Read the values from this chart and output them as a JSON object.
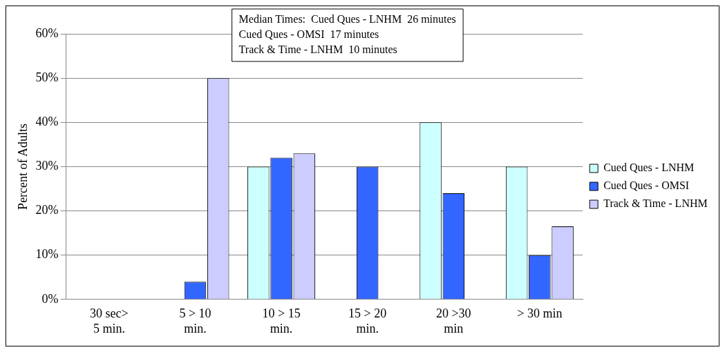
{
  "chart_data": {
    "type": "bar",
    "ylabel": "Percent of Adults",
    "categories": [
      "30 sec>\n5 min.",
      "5 > 10\nmin.",
      "10 > 15\nmin.",
      "15 > 20\nmin.",
      "20 >30\nmin",
      "> 30 min"
    ],
    "series": [
      {
        "name": "Cued Ques - LNHM",
        "color": "#ccffff",
        "values": [
          0,
          0,
          30,
          0,
          40,
          30
        ]
      },
      {
        "name": "Cued Ques - OMSI",
        "color": "#3366ff",
        "values": [
          0,
          4,
          32,
          30,
          24,
          10
        ]
      },
      {
        "name": "Track & Time - LNHM",
        "color": "#ccccff",
        "values": [
          0,
          50,
          33,
          0,
          0,
          16.5
        ]
      }
    ],
    "ylim": [
      0,
      60
    ],
    "yticks": [
      {
        "value": 0,
        "label": "0%"
      },
      {
        "value": 10,
        "label": "10%"
      },
      {
        "value": 20,
        "label": "20%"
      },
      {
        "value": 30,
        "label": "30%"
      },
      {
        "value": 40,
        "label": "40%"
      },
      {
        "value": 50,
        "label": "50%"
      },
      {
        "value": 60,
        "label": "60%"
      }
    ],
    "grid": "y",
    "legend": "right",
    "annotations": [
      "Median Times:  Cued Ques - LNHM  26 minutes",
      "Cued Ques - OMSI  17 minutes",
      "Track & Time - LNHM  10 minutes"
    ]
  }
}
